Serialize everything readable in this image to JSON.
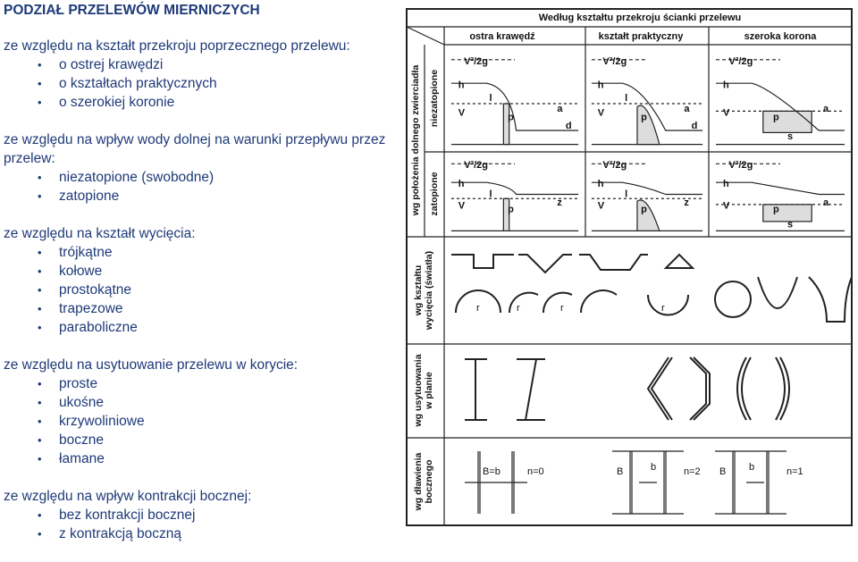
{
  "title": "PODZIAŁ PRZELEWÓW MIERNICZYCH",
  "sections": [
    {
      "heading": "ze względu na kształt przekroju poprzecznego przelewu:",
      "items": [
        "o ostrej krawędzi",
        "o kształtach praktycznych",
        "o szerokiej koronie"
      ]
    },
    {
      "heading": "ze względu na wpływ wody dolnej na warunki przepływu przez przelew:",
      "items": [
        "niezatopione (swobodne)",
        "zatopione"
      ]
    },
    {
      "heading": "ze względu na kształt wycięcia:",
      "items": [
        "trójkątne",
        "kołowe",
        "prostokątne",
        "trapezowe",
        "paraboliczne"
      ]
    },
    {
      "heading": "ze względu na usytuowanie przelewu w korycie:",
      "items": [
        "proste",
        "ukośne",
        "krzywoliniowe",
        "boczne",
        "łamane"
      ]
    },
    {
      "heading": "ze względu na wpływ kontrakcji bocznej:",
      "items": [
        "bez kontrakcji bocznej",
        "z kontrakcją boczną"
      ]
    }
  ],
  "diagram": {
    "header": "Według kształtu przekroju ścianki przelewu",
    "columns": [
      "ostra krawędź",
      "kształt praktyczny",
      "szeroka korona"
    ],
    "row_labels": [
      {
        "lines": [
          "wg położenia dolnego zwierciadła"
        ],
        "sub": [
          "niezatopione",
          "zatopione"
        ]
      },
      {
        "lines": [
          "wg kształtu",
          "wycięcia (światła)"
        ]
      },
      {
        "lines": [
          "wg usytuowania",
          "w planie"
        ]
      },
      {
        "lines": [
          "wg dławienia",
          "bocznego"
        ]
      }
    ],
    "weirs": [
      {
        "labels": [
          "V²/2g",
          "h",
          "V",
          "p",
          "l",
          "a",
          "d"
        ]
      },
      {
        "labels": [
          "V²/2g",
          "h",
          "V",
          "p",
          "l",
          "a",
          "d"
        ]
      },
      {
        "labels": [
          "V²/2g",
          "h",
          "V",
          "p",
          "s",
          "a"
        ]
      },
      {
        "labels": [
          "V²/2g",
          "h",
          "V",
          "p",
          "l",
          "z"
        ]
      },
      {
        "labels": [
          "V²/2g",
          "h",
          "V",
          "p",
          "l",
          "z"
        ]
      },
      {
        "labels": [
          "V²/2g",
          "h",
          "V",
          "p",
          "s",
          "a"
        ]
      }
    ],
    "notch_labels": [
      "r",
      "r",
      "r",
      "r"
    ],
    "contraction": [
      {
        "labels": [
          "B=b",
          "n=0"
        ]
      },
      {
        "labels": [
          "B",
          "b",
          "n=2"
        ]
      },
      {
        "labels": [
          "B",
          "b",
          "n=1"
        ]
      }
    ]
  }
}
